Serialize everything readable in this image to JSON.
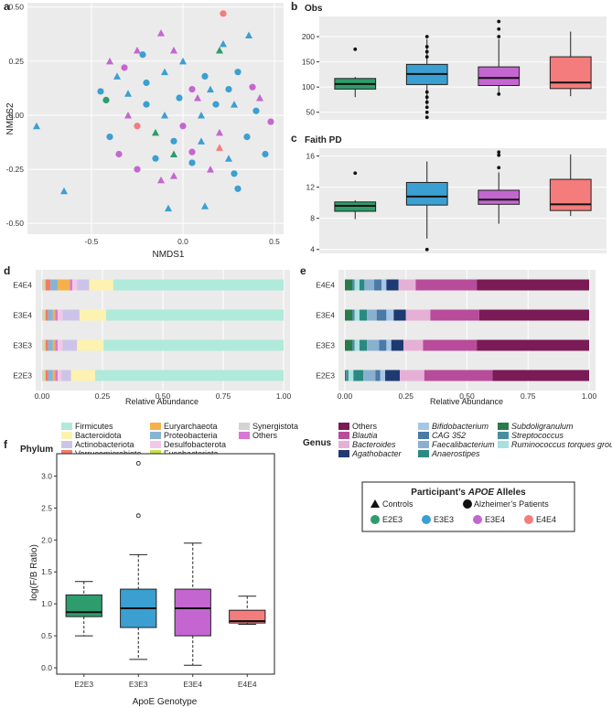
{
  "colors": {
    "E2E3": "#2e9c6c",
    "E3E3": "#3b9fd1",
    "E3E4": "#c466d0",
    "E4E4": "#f47c7c",
    "panel_bg": "#ebebeb"
  },
  "panel_labels": {
    "a": "a",
    "b": "b",
    "c": "c",
    "d": "d",
    "e": "e",
    "f": "f"
  },
  "chart_data": [
    {
      "id": "a",
      "type": "scatter",
      "title": "",
      "xlabel": "NMDS1",
      "ylabel": "NMDS2",
      "xlim": [
        -0.85,
        0.55
      ],
      "ylim": [
        -0.55,
        0.52
      ],
      "xticks": [
        "-0.5",
        "0.0",
        "0.5"
      ],
      "xtick_values": [
        -0.5,
        0.0,
        0.5
      ],
      "yticks": [
        "-0.50",
        "-0.25",
        "0.00",
        "0.25",
        "0.50"
      ],
      "ytick_values": [
        -0.5,
        -0.25,
        0,
        0.25,
        0.5
      ],
      "points": [
        {
          "x": -0.8,
          "y": -0.05,
          "g": "E3E3",
          "s": "tri"
        },
        {
          "x": -0.65,
          "y": -0.35,
          "g": "E3E3",
          "s": "tri"
        },
        {
          "x": -0.08,
          "y": -0.43,
          "g": "E3E3",
          "s": "tri"
        },
        {
          "x": 0.12,
          "y": -0.42,
          "g": "E3E3",
          "s": "tri"
        },
        {
          "x": 0.3,
          "y": -0.34,
          "g": "E3E3",
          "s": "circ"
        },
        {
          "x": 0.22,
          "y": 0.47,
          "g": "E4E4",
          "s": "circ"
        },
        {
          "x": -0.25,
          "y": 0.3,
          "g": "E3E4",
          "s": "tri"
        },
        {
          "x": -0.12,
          "y": 0.38,
          "g": "E3E4",
          "s": "tri"
        },
        {
          "x": -0.05,
          "y": 0.3,
          "g": "E3E4",
          "s": "tri"
        },
        {
          "x": 0.22,
          "y": 0.33,
          "g": "E3E3",
          "s": "tri"
        },
        {
          "x": 0.36,
          "y": 0.37,
          "g": "E3E3",
          "s": "tri"
        },
        {
          "x": 0.2,
          "y": 0.3,
          "g": "E2E3",
          "s": "tri"
        },
        {
          "x": -0.42,
          "y": 0.07,
          "g": "E2E3",
          "s": "circ"
        },
        {
          "x": -0.4,
          "y": 0.25,
          "g": "E3E4",
          "s": "tri"
        },
        {
          "x": -0.36,
          "y": 0.18,
          "g": "E3E3",
          "s": "tri"
        },
        {
          "x": -0.32,
          "y": 0.22,
          "g": "E3E4",
          "s": "circ"
        },
        {
          "x": -0.45,
          "y": 0.11,
          "g": "E3E3",
          "s": "circ"
        },
        {
          "x": -0.3,
          "y": 0.1,
          "g": "E3E3",
          "s": "tri"
        },
        {
          "x": -0.2,
          "y": 0.15,
          "g": "E3E3",
          "s": "circ"
        },
        {
          "x": -0.1,
          "y": 0.2,
          "g": "E3E3",
          "s": "tri"
        },
        {
          "x": 0.0,
          "y": 0.25,
          "g": "E3E3",
          "s": "tri"
        },
        {
          "x": 0.05,
          "y": 0.12,
          "g": "E3E4",
          "s": "circ"
        },
        {
          "x": 0.12,
          "y": 0.18,
          "g": "E3E3",
          "s": "circ"
        },
        {
          "x": 0.3,
          "y": 0.2,
          "g": "E3E3",
          "s": "circ"
        },
        {
          "x": 0.38,
          "y": 0.13,
          "g": "E3E4",
          "s": "circ"
        },
        {
          "x": 0.28,
          "y": 0.05,
          "g": "E3E3",
          "s": "tri"
        },
        {
          "x": 0.4,
          "y": 0.02,
          "g": "E3E3",
          "s": "circ"
        },
        {
          "x": 0.48,
          "y": -0.03,
          "g": "E3E4",
          "s": "circ"
        },
        {
          "x": 0.35,
          "y": -0.1,
          "g": "E3E3",
          "s": "circ"
        },
        {
          "x": 0.45,
          "y": -0.18,
          "g": "E3E3",
          "s": "circ"
        },
        {
          "x": 0.25,
          "y": -0.2,
          "g": "E3E3",
          "s": "tri"
        },
        {
          "x": 0.15,
          "y": -0.25,
          "g": "E3E4",
          "s": "tri"
        },
        {
          "x": 0.05,
          "y": -0.22,
          "g": "E3E3",
          "s": "circ"
        },
        {
          "x": -0.05,
          "y": -0.28,
          "g": "E3E4",
          "s": "tri"
        },
        {
          "x": -0.15,
          "y": -0.2,
          "g": "E3E3",
          "s": "circ"
        },
        {
          "x": -0.25,
          "y": -0.25,
          "g": "E3E4",
          "s": "circ"
        },
        {
          "x": -0.35,
          "y": -0.18,
          "g": "E3E4",
          "s": "circ"
        },
        {
          "x": -0.4,
          "y": -0.1,
          "g": "E3E3",
          "s": "circ"
        },
        {
          "x": -0.25,
          "y": -0.05,
          "g": "E4E4",
          "s": "circ"
        },
        {
          "x": -0.2,
          "y": 0.05,
          "g": "E3E3",
          "s": "circ"
        },
        {
          "x": -0.1,
          "y": 0.0,
          "g": "E3E3",
          "s": "tri"
        },
        {
          "x": 0.0,
          "y": -0.05,
          "g": "E3E4",
          "s": "circ"
        },
        {
          "x": 0.1,
          "y": 0.0,
          "g": "E3E3",
          "s": "tri"
        },
        {
          "x": 0.18,
          "y": 0.05,
          "g": "E3E3",
          "s": "circ"
        },
        {
          "x": 0.2,
          "y": -0.08,
          "g": "E3E4",
          "s": "tri"
        },
        {
          "x": 0.1,
          "y": -0.12,
          "g": "E3E3",
          "s": "tri"
        },
        {
          "x": -0.05,
          "y": -0.12,
          "g": "E3E3",
          "s": "circ"
        },
        {
          "x": -0.15,
          "y": -0.08,
          "g": "E2E3",
          "s": "tri"
        },
        {
          "x": -0.3,
          "y": 0.0,
          "g": "E3E4",
          "s": "tri"
        },
        {
          "x": -0.02,
          "y": 0.08,
          "g": "E3E3",
          "s": "circ"
        },
        {
          "x": 0.08,
          "y": 0.08,
          "g": "E3E4",
          "s": "tri"
        },
        {
          "x": 0.15,
          "y": 0.12,
          "g": "E3E3",
          "s": "tri"
        },
        {
          "x": 0.25,
          "y": 0.12,
          "g": "E3E3",
          "s": "circ"
        },
        {
          "x": -0.05,
          "y": -0.18,
          "g": "E2E3",
          "s": "tri"
        },
        {
          "x": 0.2,
          "y": -0.15,
          "g": "E4E4",
          "s": "tri"
        },
        {
          "x": 0.05,
          "y": -0.17,
          "g": "E3E4",
          "s": "circ"
        },
        {
          "x": -0.22,
          "y": 0.28,
          "g": "E3E3",
          "s": "circ"
        },
        {
          "x": 0.28,
          "y": -0.27,
          "g": "E3E3",
          "s": "circ"
        },
        {
          "x": 0.42,
          "y": 0.08,
          "g": "E3E4",
          "s": "tri"
        },
        {
          "x": -0.12,
          "y": -0.3,
          "g": "E3E4",
          "s": "tri"
        }
      ]
    },
    {
      "id": "b",
      "type": "box",
      "title": "Obs",
      "ylim": [
        35,
        240
      ],
      "yticks": [
        "50",
        "100",
        "150",
        "200"
      ],
      "ytick_values": [
        50,
        100,
        150,
        200
      ],
      "categories": [
        "E2E3",
        "E3E3",
        "E3E4",
        "E4E4"
      ],
      "boxes": [
        {
          "g": "E2E3",
          "min": 80,
          "q1": 96,
          "med": 106,
          "q3": 117,
          "max": 120,
          "out": [
            175
          ]
        },
        {
          "g": "E3E3",
          "min": 65,
          "q1": 105,
          "med": 126,
          "q3": 145,
          "max": 195,
          "out": [
            40,
            50,
            60,
            70,
            80,
            90,
            160,
            170,
            180,
            200
          ]
        },
        {
          "g": "E3E4",
          "min": 88,
          "q1": 103,
          "med": 118,
          "q3": 140,
          "max": 195,
          "out": [
            86,
            200,
            215,
            230
          ]
        },
        {
          "g": "E4E4",
          "min": 82,
          "q1": 97,
          "med": 109,
          "q3": 160,
          "max": 210,
          "out": []
        }
      ]
    },
    {
      "id": "c",
      "type": "box",
      "title": "Faith PD",
      "ylim": [
        3.5,
        17
      ],
      "yticks": [
        "4",
        "8",
        "12",
        "16"
      ],
      "ytick_values": [
        4,
        8,
        12,
        16
      ],
      "categories": [
        "E2E3",
        "E3E3",
        "E3E4",
        "E4E4"
      ],
      "boxes": [
        {
          "g": "E2E3",
          "min": 7.9,
          "q1": 8.9,
          "med": 9.6,
          "q3": 10.1,
          "max": 10.3,
          "out": [
            13.8
          ]
        },
        {
          "g": "E3E3",
          "min": 5.4,
          "q1": 9.7,
          "med": 10.8,
          "q3": 12.6,
          "max": 15.3,
          "out": [
            4.0
          ]
        },
        {
          "g": "E3E4",
          "min": 7.3,
          "q1": 9.8,
          "med": 10.4,
          "q3": 11.6,
          "max": 13.9,
          "out": [
            14.5,
            16.1,
            16.5
          ]
        },
        {
          "g": "E4E4",
          "min": 8.3,
          "q1": 9.0,
          "med": 9.8,
          "q3": 13.0,
          "max": 16.2,
          "out": []
        }
      ]
    },
    {
      "id": "d",
      "type": "stacked-bar",
      "xlabel": "Relative Abundance",
      "xticks": [
        "0.00",
        "0.25",
        "0.50",
        "0.75",
        "1.00"
      ],
      "xtick_values": [
        0,
        0.25,
        0.5,
        0.75,
        1.0
      ],
      "categories": [
        "E4E4",
        "E3E4",
        "E3E3",
        "E2E3"
      ],
      "segment_order": [
        "Synergistota",
        "Fusobacteriota",
        "Verrucomicrobiota",
        "Proteobacteria",
        "Euryarchaeota",
        "Others",
        "Desulfobacterota",
        "Actinobacteriota",
        "Bacteroidota",
        "Firmicutes"
      ],
      "segment_colors": {
        "Synergistota": "#d4d4d4",
        "Fusobacteriota": "#c8e04a",
        "Verrucomicrobiota": "#f47a6a",
        "Proteobacteria": "#86b4d4",
        "Euryarchaeota": "#f5b049",
        "Others": "#d678d6",
        "Desulfobacterota": "#f2c7e8",
        "Actinobacteriota": "#ccc4e8",
        "Bacteroidota": "#fdf2b0",
        "Firmicutes": "#b0eada"
      },
      "rows": [
        {
          "cat": "E4E4",
          "values": [
            0.01,
            0.005,
            0.02,
            0.03,
            0.05,
            0.01,
            0.02,
            0.05,
            0.1,
            0.705
          ]
        },
        {
          "cat": "E3E4",
          "values": [
            0.01,
            0.005,
            0.01,
            0.02,
            0.01,
            0.01,
            0.02,
            0.07,
            0.11,
            0.735
          ]
        },
        {
          "cat": "E3E3",
          "values": [
            0.01,
            0.005,
            0.01,
            0.02,
            0.01,
            0.01,
            0.02,
            0.06,
            0.11,
            0.745
          ]
        },
        {
          "cat": "E2E3",
          "values": [
            0.01,
            0.005,
            0.01,
            0.02,
            0.01,
            0.01,
            0.015,
            0.04,
            0.1,
            0.78
          ]
        }
      ],
      "legend_title": "Phylum",
      "legend": [
        "Firmicutes",
        "Bacteroidota",
        "Actinobacteriota",
        "Verrucomicrobiota",
        "Euryarchaeota",
        "Proteobacteria",
        "Desulfobacterota",
        "Fusobacteriota",
        "Synergistota",
        "Others"
      ]
    },
    {
      "id": "e",
      "type": "stacked-bar",
      "xlabel": "Relative Abundance",
      "xticks": [
        "0.00",
        "0.25",
        "0.50",
        "0.75",
        "1.00"
      ],
      "xtick_values": [
        0,
        0.25,
        0.5,
        0.75,
        1.0
      ],
      "categories": [
        "E4E4",
        "E3E4",
        "E3E3",
        "E2E3"
      ],
      "segment_order": [
        "Subdoligranulum",
        "Streptococcus",
        "Ruminococcus torques group",
        "Anaerostipes",
        "Faecalibacterium",
        "CAG 352",
        "Bifidobacterium",
        "Agathobacter",
        "Bacteroides",
        "Blautia",
        "Others"
      ],
      "segment_colors": {
        "Subdoligranulum": "#2a7a4a",
        "Streptococcus": "#4a8fa0",
        "Ruminococcus torques group": "#a8e0e0",
        "Anaerostipes": "#2a8a82",
        "Faecalibacterium": "#8ab0d0",
        "CAG 352": "#4a7aa6",
        "Bifidobacterium": "#a6c6e6",
        "Agathobacter": "#1e3a72",
        "Bacteroides": "#e6b0d6",
        "Blautia": "#b84c9a",
        "Others": "#7a1a56"
      },
      "rows": [
        {
          "cat": "E4E4",
          "values": [
            0.03,
            0.01,
            0.02,
            0.02,
            0.04,
            0.03,
            0.02,
            0.05,
            0.07,
            0.25,
            0.46
          ]
        },
        {
          "cat": "E3E4",
          "values": [
            0.03,
            0.01,
            0.02,
            0.03,
            0.04,
            0.04,
            0.03,
            0.05,
            0.1,
            0.2,
            0.45
          ]
        },
        {
          "cat": "E3E3",
          "values": [
            0.03,
            0.01,
            0.02,
            0.03,
            0.05,
            0.03,
            0.02,
            0.05,
            0.08,
            0.22,
            0.46
          ]
        },
        {
          "cat": "E2E3",
          "values": [
            0.005,
            0.01,
            0.02,
            0.04,
            0.05,
            0.02,
            0.02,
            0.06,
            0.1,
            0.28,
            0.395
          ]
        }
      ],
      "legend_title": "Genus",
      "legend": [
        "Others",
        "Blautia",
        "Bacteroides",
        "Agathobacter",
        "Bifidobacterium",
        "CAG 352",
        "Faecalibacterium",
        "Anaerostipes",
        "Subdoligranulum",
        "Streptococcus",
        "Ruminococcus torques group"
      ]
    },
    {
      "id": "f",
      "type": "box",
      "xlabel": "ApoE Genotype",
      "ylabel": "log(F/B Ratio)",
      "ylim": [
        -0.1,
        3.35
      ],
      "yticks": [
        "0.0",
        "0.5",
        "1.0",
        "1.5",
        "2.0",
        "2.5",
        "3.0"
      ],
      "ytick_values": [
        0,
        0.5,
        1,
        1.5,
        2,
        2.5,
        3
      ],
      "categories": [
        "E2E3",
        "E3E3",
        "E3E4",
        "E4E4"
      ],
      "boxes": [
        {
          "g": "E2E3",
          "min": 0.5,
          "q1": 0.8,
          "med": 0.87,
          "q3": 1.14,
          "max": 1.35,
          "out": []
        },
        {
          "g": "E3E3",
          "min": 0.13,
          "q1": 0.63,
          "med": 0.93,
          "q3": 1.23,
          "max": 1.77,
          "out": [
            2.38,
            3.2
          ]
        },
        {
          "g": "E3E4",
          "min": 0.04,
          "q1": 0.5,
          "med": 0.93,
          "q3": 1.23,
          "max": 1.95,
          "out": []
        },
        {
          "g": "E4E4",
          "min": 0.68,
          "q1": 0.7,
          "med": 0.73,
          "q3": 0.9,
          "max": 1.12,
          "out": []
        }
      ]
    }
  ],
  "legend_apoe": {
    "title_prefix": "Participant’s ",
    "title_italic": "APOE",
    "title_suffix": " Alleles",
    "controls": "Controls",
    "patients": "Alzheimer’s Patients",
    "groups": [
      "E2E3",
      "E3E3",
      "E3E4",
      "E4E4"
    ]
  }
}
